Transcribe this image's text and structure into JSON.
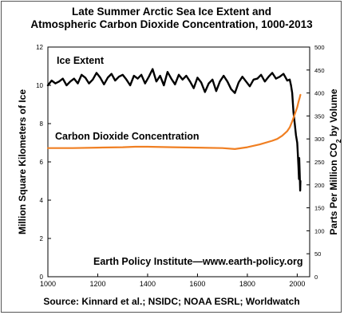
{
  "chart_data": {
    "type": "line",
    "title_line1": "Late Summer Arctic Sea Ice Extent and",
    "title_line2": "Atmospheric Carbon Dioxide Concentration, 1000-2013",
    "ylabel_left": "Million Square Kilometers of Ice",
    "ylabel_right_pre": "Parts Per Million CO",
    "ylabel_right_sub": "2",
    "ylabel_right_post": " by Volume",
    "xlim": [
      1000,
      2050
    ],
    "ylim_left": [
      0,
      12
    ],
    "ylim_right": [
      0,
      500
    ],
    "x_ticks": [
      "1000",
      "1200",
      "1400",
      "1600",
      "1800",
      "2000"
    ],
    "x_tick_values": [
      1000,
      1200,
      1400,
      1600,
      1800,
      2000
    ],
    "y_left_ticks": [
      "0",
      "2",
      "4",
      "6",
      "8",
      "10",
      "12"
    ],
    "y_left_tick_values": [
      0,
      2,
      4,
      6,
      8,
      10,
      12
    ],
    "y_right_ticks": [
      "0",
      "50",
      "100",
      "150",
      "200",
      "250",
      "300",
      "350",
      "400",
      "450",
      "500"
    ],
    "y_right_tick_values": [
      0,
      50,
      100,
      150,
      200,
      250,
      300,
      350,
      400,
      450,
      500
    ],
    "grid": false,
    "series": [
      {
        "name": "Ice Extent",
        "axis": "left",
        "color": "#000000",
        "x": [
          1000,
          1015,
          1030,
          1045,
          1060,
          1075,
          1090,
          1105,
          1120,
          1135,
          1150,
          1165,
          1180,
          1195,
          1210,
          1225,
          1240,
          1255,
          1270,
          1285,
          1300,
          1315,
          1330,
          1345,
          1360,
          1375,
          1390,
          1405,
          1420,
          1435,
          1450,
          1465,
          1480,
          1495,
          1510,
          1525,
          1540,
          1555,
          1570,
          1585,
          1600,
          1615,
          1630,
          1645,
          1660,
          1675,
          1690,
          1705,
          1720,
          1735,
          1750,
          1765,
          1780,
          1795,
          1810,
          1825,
          1840,
          1855,
          1870,
          1885,
          1900,
          1915,
          1930,
          1945,
          1960,
          1970,
          1975,
          1980,
          1985,
          1990,
          1995,
          2000,
          2003,
          2005,
          2007,
          2008,
          2010,
          2012,
          2013
        ],
        "values": [
          10.0,
          10.25,
          10.1,
          10.2,
          10.35,
          10.0,
          10.2,
          10.35,
          10.1,
          10.55,
          10.4,
          10.1,
          10.3,
          10.65,
          10.4,
          10.05,
          10.4,
          10.6,
          10.25,
          10.45,
          10.55,
          10.3,
          10.0,
          10.5,
          10.35,
          10.55,
          10.1,
          10.45,
          10.85,
          10.2,
          10.5,
          10.0,
          10.7,
          10.35,
          10.05,
          10.55,
          10.3,
          10.5,
          10.2,
          9.85,
          10.4,
          10.15,
          9.65,
          10.1,
          10.3,
          9.7,
          10.2,
          10.5,
          10.2,
          9.8,
          9.6,
          10.15,
          10.45,
          10.2,
          9.95,
          10.3,
          10.35,
          10.55,
          10.2,
          10.45,
          10.65,
          10.35,
          10.45,
          10.6,
          10.25,
          10.3,
          10.0,
          9.6,
          8.6,
          8.0,
          7.4,
          7.0,
          6.3,
          5.8,
          5.1,
          6.2,
          5.4,
          4.5,
          5.0
        ]
      },
      {
        "name": "Carbon Dioxide Concentration",
        "axis": "right",
        "color": "#f07f22",
        "x": [
          1000,
          1100,
          1200,
          1300,
          1350,
          1400,
          1500,
          1600,
          1700,
          1750,
          1800,
          1850,
          1900,
          1920,
          1940,
          1960,
          1970,
          1980,
          1990,
          2000,
          2005,
          2010,
          2013
        ],
        "values": [
          280,
          280,
          281,
          282,
          283,
          283,
          282,
          281,
          280,
          278,
          282,
          288,
          296,
          300,
          307,
          317,
          325,
          338,
          354,
          369,
          380,
          390,
          396
        ]
      }
    ],
    "annotations": {
      "ice_label": "Ice Extent",
      "co2_label": "Carbon Dioxide Concentration",
      "institute": "Earth Policy Institute—www.earth-policy.org"
    },
    "source": "Source: Kinnard et al.; NSIDC; NOAA ESRL; Worldwatch"
  }
}
